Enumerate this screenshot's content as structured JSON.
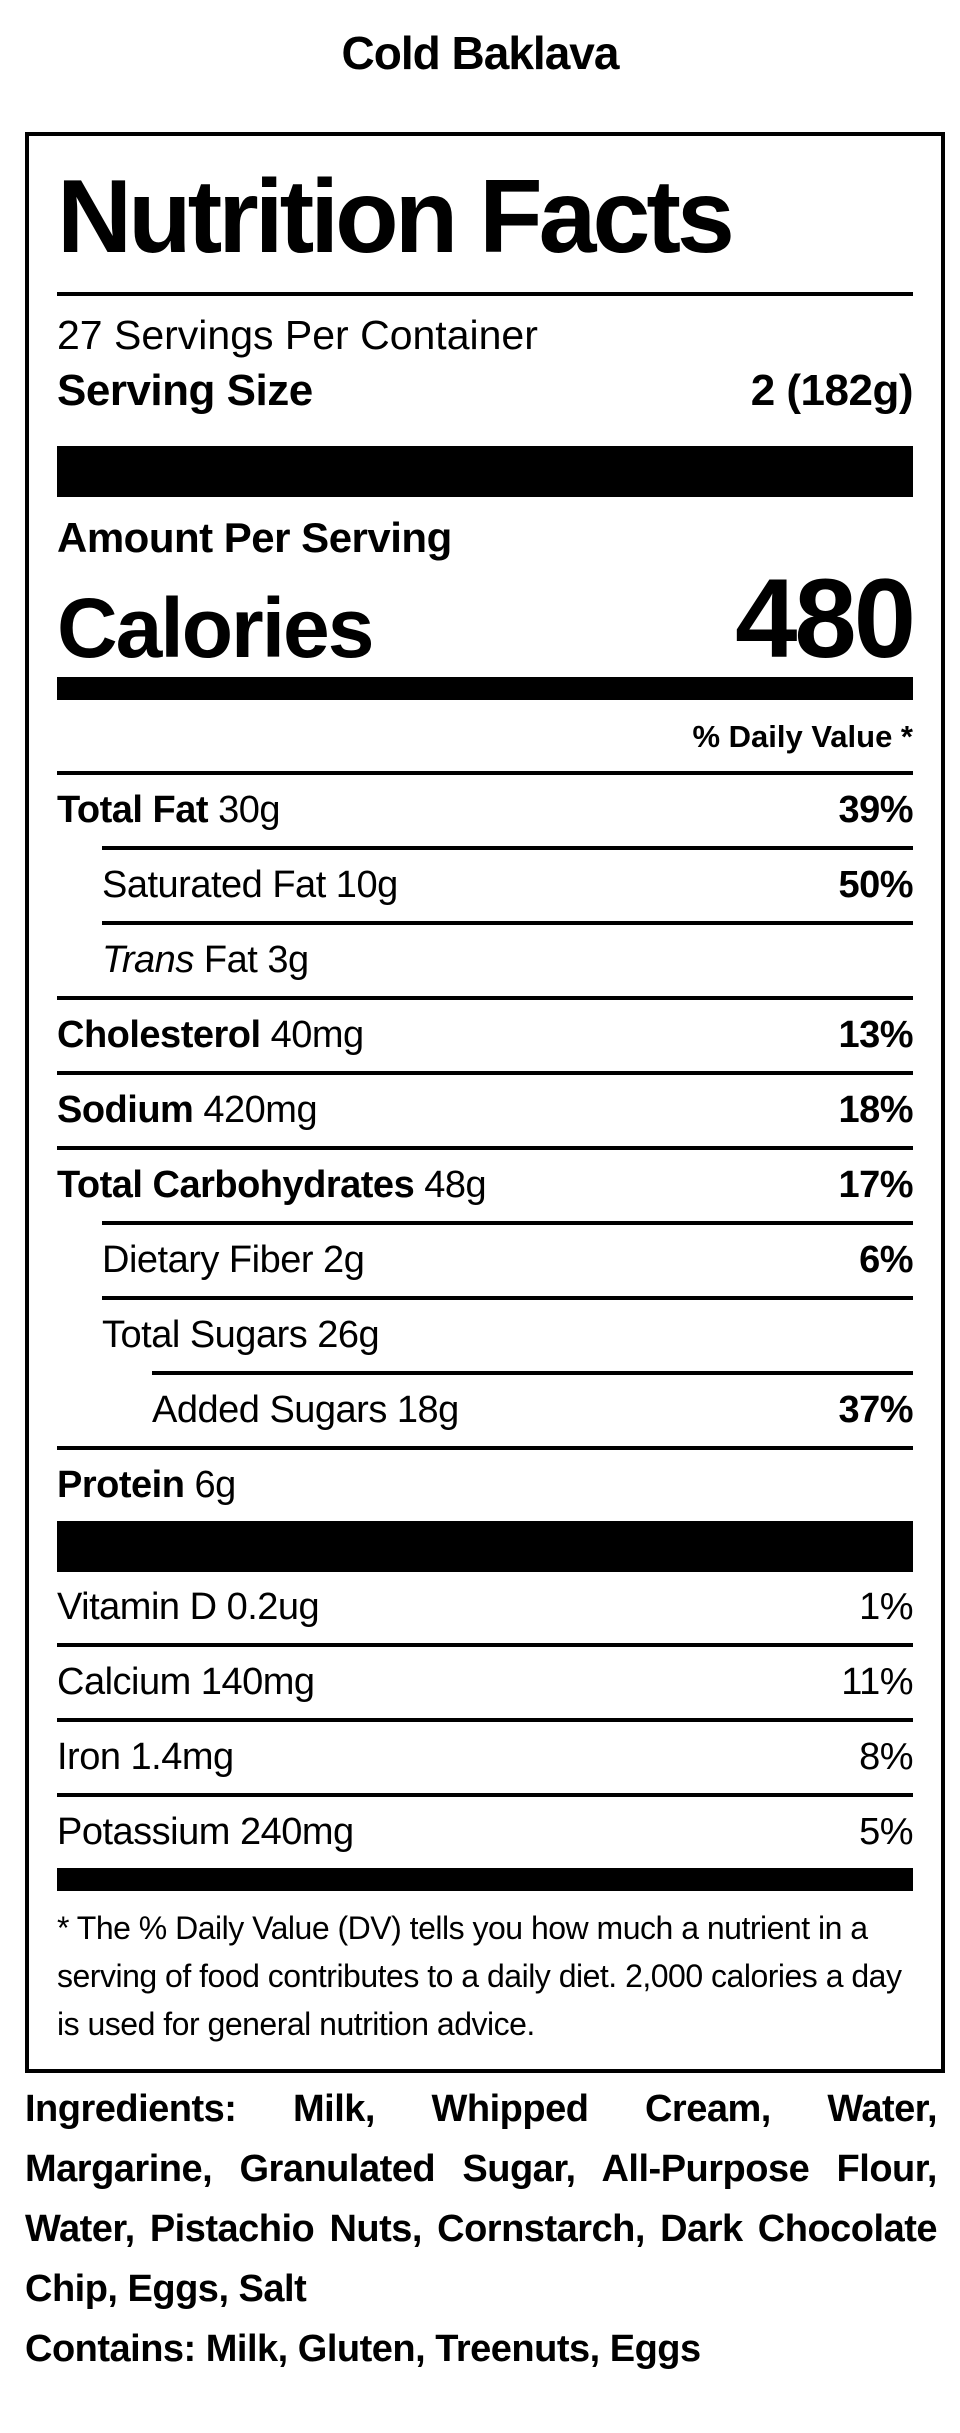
{
  "title": "Cold Baklava",
  "colors": {
    "text": "#000000",
    "background": "#ffffff"
  },
  "label": {
    "header": "Nutrition Facts",
    "servings_per_container": "27 Servings Per Container",
    "serving_size": {
      "label": "Serving Size",
      "value": "2 (182g)"
    },
    "amount_per_serving": "Amount Per Serving",
    "calories": {
      "label": "Calories",
      "value": "480"
    },
    "daily_value_header": "% Daily Value *",
    "nutrient_rows": [
      {
        "name": "Total Fat",
        "name_bold": true,
        "amount": "30g",
        "dv": "39%",
        "dv_bold": true,
        "indent": 0,
        "rule_indent": 0
      },
      {
        "name": "Saturated Fat",
        "name_bold": false,
        "amount": "10g",
        "dv": "50%",
        "dv_bold": true,
        "indent": 1,
        "rule_indent": 1
      },
      {
        "name_italic": "Trans",
        "name": "Fat",
        "name_bold": false,
        "amount": "3g",
        "dv": "",
        "dv_bold": false,
        "indent": 1,
        "rule_indent": 1
      },
      {
        "name": "Cholesterol",
        "name_bold": true,
        "amount": "40mg",
        "dv": "13%",
        "dv_bold": true,
        "indent": 0,
        "rule_indent": 0
      },
      {
        "name": "Sodium",
        "name_bold": true,
        "amount": "420mg",
        "dv": "18%",
        "dv_bold": true,
        "indent": 0,
        "rule_indent": 0
      },
      {
        "name": "Total Carbohydrates",
        "name_bold": true,
        "amount": "48g",
        "dv": "17%",
        "dv_bold": true,
        "indent": 0,
        "rule_indent": 0
      },
      {
        "name": "Dietary Fiber",
        "name_bold": false,
        "amount": "2g",
        "dv": "6%",
        "dv_bold": true,
        "indent": 1,
        "rule_indent": 1
      },
      {
        "name": "Total Sugars",
        "name_bold": false,
        "amount": "26g",
        "dv": "",
        "dv_bold": false,
        "indent": 1,
        "rule_indent": 1
      },
      {
        "name": "Added Sugars",
        "name_bold": false,
        "amount": "18g",
        "dv": "37%",
        "dv_bold": true,
        "indent": 2,
        "rule_indent": 2
      },
      {
        "name": "Protein",
        "name_bold": true,
        "amount": "6g",
        "dv": "",
        "dv_bold": false,
        "indent": 0,
        "rule_indent": 0
      }
    ],
    "vitamin_rows": [
      {
        "name": "Vitamin D",
        "amount": "0.2ug",
        "dv": "1%"
      },
      {
        "name": "Calcium",
        "amount": "140mg",
        "dv": "11%"
      },
      {
        "name": "Iron",
        "amount": "1.4mg",
        "dv": "8%"
      },
      {
        "name": "Potassium",
        "amount": "240mg",
        "dv": "5%"
      }
    ],
    "footnote": "* The % Daily Value (DV) tells you how much a nutrient in a serving of food contributes to a daily diet. 2,000 calories a day is used for general nutrition advice."
  },
  "ingredients": {
    "text": "Ingredients: Milk, Whipped Cream, Water, Margarine, Granulated Sugar, All-Purpose Flour, Water, Pistachio Nuts, Cornstarch, Dark Chocolate Chip, Eggs, Salt",
    "contains": "Contains: Milk, Gluten, Treenuts, Eggs"
  }
}
